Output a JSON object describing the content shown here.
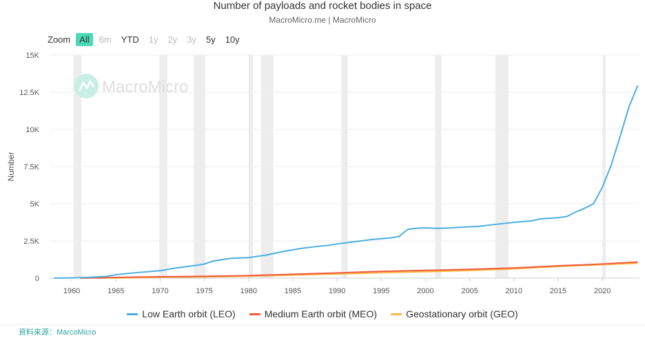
{
  "header": {
    "title": "Number of payloads and rocket bodies in space",
    "subtitle": "MacroMicro.me | MacroMicro"
  },
  "zoom": {
    "label": "Zoom",
    "buttons": [
      {
        "label": "All",
        "state": "active"
      },
      {
        "label": "6m",
        "state": "disabled"
      },
      {
        "label": "YTD",
        "state": "on"
      },
      {
        "label": "1y",
        "state": "disabled"
      },
      {
        "label": "2y",
        "state": "disabled"
      },
      {
        "label": "3y",
        "state": "disabled"
      },
      {
        "label": "5y",
        "state": "on"
      },
      {
        "label": "10y",
        "state": "on"
      }
    ]
  },
  "watermark": "MacroMicro",
  "source": "資料來源：MarcoMicro",
  "chart_data": {
    "type": "line",
    "title": "Number of payloads and rocket bodies in space",
    "ylabel": "Number",
    "xlabel": "",
    "xlim": [
      1957.5,
      2024.2
    ],
    "ylim": [
      0,
      15000
    ],
    "yticks": [
      0,
      2500,
      5000,
      7500,
      10000,
      12500,
      15000
    ],
    "ytick_labels": [
      "0",
      "2.5K",
      "5K",
      "7.5K",
      "10K",
      "12.5K",
      "15K"
    ],
    "xticks": [
      1960,
      1965,
      1970,
      1975,
      1980,
      1985,
      1990,
      1995,
      2000,
      2005,
      2010,
      2015,
      2020
    ],
    "recessions": [
      [
        1960.2,
        1961.1
      ],
      [
        1969.9,
        1970.8
      ],
      [
        1973.8,
        1975.1
      ],
      [
        1980,
        1980.5
      ],
      [
        1981.4,
        1982.8
      ],
      [
        1990.5,
        1991.2
      ],
      [
        2001.1,
        2001.8
      ],
      [
        2007.9,
        2009.4
      ],
      [
        2020.0,
        2020.4
      ]
    ],
    "legend_position": "bottom",
    "series": [
      {
        "name": "Low Earth orbit (LEO)",
        "color": "#4aaee0",
        "points": [
          [
            1958,
            0
          ],
          [
            1960,
            20
          ],
          [
            1962,
            50
          ],
          [
            1964,
            120
          ],
          [
            1965,
            230
          ],
          [
            1967,
            350
          ],
          [
            1969,
            450
          ],
          [
            1970,
            500
          ],
          [
            1972,
            700
          ],
          [
            1974,
            850
          ],
          [
            1975,
            950
          ],
          [
            1976,
            1150
          ],
          [
            1978,
            1330
          ],
          [
            1980,
            1380
          ],
          [
            1982,
            1550
          ],
          [
            1984,
            1800
          ],
          [
            1986,
            2000
          ],
          [
            1988,
            2150
          ],
          [
            1989,
            2200
          ],
          [
            1990,
            2300
          ],
          [
            1992,
            2450
          ],
          [
            1994,
            2600
          ],
          [
            1996,
            2700
          ],
          [
            1997,
            2800
          ],
          [
            1998,
            3280
          ],
          [
            1999,
            3350
          ],
          [
            2000,
            3380
          ],
          [
            2001,
            3350
          ],
          [
            2002,
            3350
          ],
          [
            2004,
            3420
          ],
          [
            2006,
            3480
          ],
          [
            2008,
            3620
          ],
          [
            2010,
            3750
          ],
          [
            2012,
            3850
          ],
          [
            2013,
            3980
          ],
          [
            2015,
            4060
          ],
          [
            2016,
            4150
          ],
          [
            2017,
            4450
          ],
          [
            2018,
            4700
          ],
          [
            2019,
            5000
          ],
          [
            2020,
            6100
          ],
          [
            2021,
            7600
          ],
          [
            2022,
            9500
          ],
          [
            2023,
            11500
          ],
          [
            2024,
            12950
          ]
        ]
      },
      {
        "name": "Medium Earth orbit (MEO)",
        "color": "#ef5a3c",
        "points": [
          [
            1961,
            0
          ],
          [
            1963,
            20
          ],
          [
            1966,
            60
          ],
          [
            1970,
            90
          ],
          [
            1975,
            120
          ],
          [
            1980,
            170
          ],
          [
            1985,
            260
          ],
          [
            1990,
            350
          ],
          [
            1995,
            450
          ],
          [
            2000,
            520
          ],
          [
            2005,
            590
          ],
          [
            2010,
            680
          ],
          [
            2015,
            830
          ],
          [
            2020,
            950
          ],
          [
            2024,
            1080
          ]
        ]
      },
      {
        "name": "Geostationary orbit (GEO)",
        "color": "#f9b944",
        "points": [
          [
            1963,
            0
          ],
          [
            1966,
            20
          ],
          [
            1970,
            50
          ],
          [
            1975,
            80
          ],
          [
            1980,
            130
          ],
          [
            1985,
            200
          ],
          [
            1990,
            280
          ],
          [
            1995,
            360
          ],
          [
            2000,
            430
          ],
          [
            2005,
            510
          ],
          [
            2010,
            620
          ],
          [
            2015,
            780
          ],
          [
            2020,
            900
          ],
          [
            2024,
            1000
          ]
        ]
      }
    ]
  }
}
